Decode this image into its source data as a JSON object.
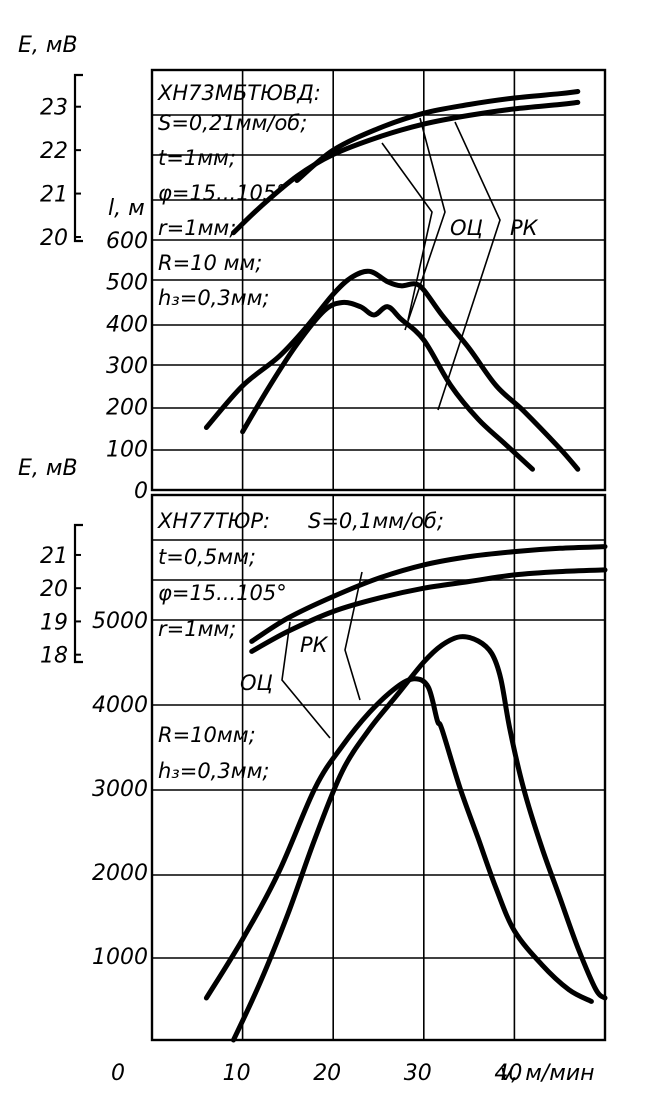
{
  "chart_data": [
    {
      "type": "line",
      "title": "ХН73МБТЮВД:",
      "conditions": [
        "S=0,21мм/об;",
        "t=1мм;",
        "φ=15...105°",
        "r=1мм;",
        "R=10 мм;",
        "h₃=0,3мм;"
      ],
      "xlabel": "v, м/мин",
      "xlim": [
        0,
        50
      ],
      "x_ticks": [
        "10",
        "20",
        "30",
        "40"
      ],
      "y_left_label": "l, м",
      "y_left_ticks": [
        "0",
        "100",
        "200",
        "300",
        "400",
        "500",
        "600"
      ],
      "ylim_left": [
        0,
        600
      ],
      "y_e_label": "E, мВ",
      "y_e_ticks": [
        "20",
        "21",
        "22",
        "23"
      ],
      "ylim_e": [
        20,
        23.5
      ],
      "series_labels": [
        "ОЦ",
        "РК"
      ],
      "series": [
        {
          "name": "ОЦ",
          "axis": "E",
          "x": [
            9,
            12,
            16,
            20,
            25,
            30,
            35,
            40,
            45,
            47
          ],
          "values": [
            20.1,
            20.7,
            21.4,
            21.9,
            22.3,
            22.6,
            22.8,
            22.95,
            23.05,
            23.1
          ]
        },
        {
          "name": "РК",
          "axis": "E",
          "x": [
            16,
            20,
            25,
            30,
            35,
            40,
            45,
            47
          ],
          "values": [
            21.3,
            22.0,
            22.5,
            22.85,
            23.05,
            23.2,
            23.3,
            23.35
          ]
        },
        {
          "name": "ОЦ",
          "axis": "l",
          "x": [
            10,
            13,
            16,
            19,
            21,
            23,
            24.5,
            26,
            27.5,
            30,
            33,
            36,
            39,
            42
          ],
          "values": [
            140,
            250,
            350,
            430,
            450,
            440,
            420,
            440,
            410,
            360,
            250,
            170,
            110,
            50
          ]
        },
        {
          "name": "РК",
          "axis": "l",
          "x": [
            6,
            10,
            14,
            17,
            20,
            22,
            24,
            26,
            27.5,
            29,
            30,
            32,
            35,
            38,
            41,
            45,
            47
          ],
          "values": [
            150,
            250,
            320,
            390,
            470,
            510,
            525,
            500,
            490,
            495,
            480,
            420,
            340,
            250,
            190,
            100,
            50
          ]
        }
      ]
    },
    {
      "type": "line",
      "title": "ХН77ТЮР:",
      "conditions": [
        "S=0,1мм/об;",
        "t=0,5мм;",
        "φ=15...105°",
        "r=1мм;",
        "R=10мм;",
        "h₃=0,3мм;"
      ],
      "xlabel": "v, м/мин",
      "xlim": [
        0,
        50
      ],
      "x_ticks": [
        "0",
        "10",
        "20",
        "30",
        "40"
      ],
      "y_left_label": "l, м",
      "y_left_ticks": [
        "1000",
        "2000",
        "3000",
        "4000",
        "5000"
      ],
      "ylim_left": [
        0,
        5000
      ],
      "y_e_label": "E, мВ",
      "y_e_ticks": [
        "18",
        "19",
        "20",
        "21"
      ],
      "ylim_e": [
        17.9,
        21.6
      ],
      "series_labels": [
        "ОЦ",
        "РК"
      ],
      "series": [
        {
          "name": "ОЦ",
          "axis": "E",
          "x": [
            11,
            15,
            20,
            25,
            30,
            35,
            40,
            45,
            50
          ],
          "values": [
            18.1,
            18.7,
            19.3,
            19.7,
            20.0,
            20.2,
            20.4,
            20.5,
            20.55
          ]
        },
        {
          "name": "РК",
          "axis": "E",
          "x": [
            11,
            15,
            20,
            25,
            30,
            35,
            40,
            45,
            50
          ],
          "values": [
            18.4,
            19.1,
            19.75,
            20.3,
            20.7,
            20.95,
            21.1,
            21.2,
            21.25
          ]
        },
        {
          "name": "ОЦ",
          "axis": "l",
          "x": [
            6,
            10,
            14,
            18,
            21,
            24,
            27,
            29,
            30.5,
            31.5,
            32,
            34,
            36,
            38,
            40,
            43,
            46,
            48.5
          ],
          "values": [
            500,
            1200,
            2000,
            3000,
            3500,
            3900,
            4200,
            4300,
            4200,
            3800,
            3700,
            3000,
            2400,
            1800,
            1300,
            900,
            600,
            460
          ]
        },
        {
          "name": "РК",
          "axis": "l",
          "x": [
            9,
            12,
            15,
            18,
            21,
            24,
            27,
            30,
            32,
            34,
            36,
            37.5,
            38.5,
            39.5,
            41,
            43,
            45,
            47,
            49,
            50
          ],
          "values": [
            0,
            700,
            1500,
            2400,
            3200,
            3700,
            4100,
            4500,
            4700,
            4800,
            4750,
            4600,
            4300,
            3700,
            3000,
            2300,
            1700,
            1100,
            600,
            500
          ]
        }
      ]
    }
  ]
}
